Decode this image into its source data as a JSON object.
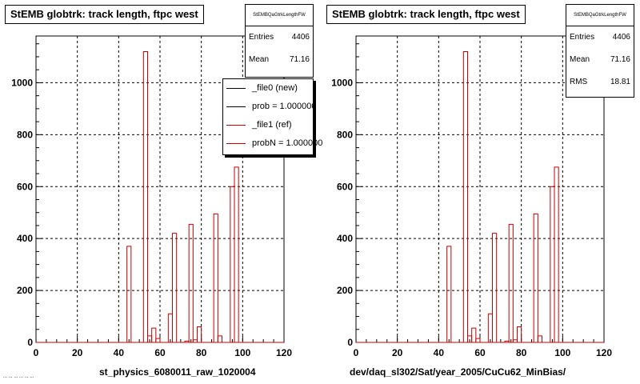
{
  "colors": {
    "ref": "#cc0000",
    "new": "#000000",
    "grid": "#000000"
  },
  "footer": "... ... ... ... ... ...",
  "pads": [
    {
      "id": "left",
      "title": "StEMB globtrk: track length, ftpc west",
      "stats": {
        "name": "StEMBQaGtrkLengthFW",
        "rows": [
          {
            "label": "Entries",
            "value": "4406"
          },
          {
            "label": "Mean",
            "value": "71.16"
          }
        ]
      },
      "legend": [
        {
          "label": "_file0 (new)",
          "color": "#000000"
        },
        {
          "label": "prob = 1.000000",
          "color": "#000000"
        },
        {
          "label": "_file1 (ref)",
          "color": "#cc0000"
        },
        {
          "label": "probN = 1.000000",
          "color": "#cc0000"
        }
      ],
      "xcaption": "st_physics_6080011_raw_1020004"
    },
    {
      "id": "right",
      "title": "StEMB globtrk: track length, ftpc west",
      "stats": {
        "name": "StEMBQaGtrkLengthFW",
        "rows": [
          {
            "label": "Entries",
            "value": "4406"
          },
          {
            "label": "Mean",
            "value": "71.16"
          },
          {
            "label": "RMS",
            "value": "18.81"
          }
        ]
      },
      "legend": [],
      "xcaption": "dev/daq_sl302/Sat/year_2005/CuCu62_MinBias/"
    }
  ],
  "chart_data": [
    {
      "type": "bar",
      "title": "StEMB globtrk: track length, ftpc west",
      "xlabel": "st_physics_6080011_raw_1020004",
      "ylabel": "",
      "xlim": [
        0,
        120
      ],
      "ylim": [
        0,
        1180
      ],
      "xticks": [
        0,
        20,
        40,
        60,
        80,
        100,
        120
      ],
      "yticks": [
        0,
        200,
        400,
        600,
        800,
        1000
      ],
      "grid": true,
      "bin_width": 2,
      "bins": [
        {
          "x": 42,
          "y": 0
        },
        {
          "x": 44,
          "y": 370
        },
        {
          "x": 46,
          "y": 0
        },
        {
          "x": 48,
          "y": 0
        },
        {
          "x": 50,
          "y": 0
        },
        {
          "x": 52,
          "y": 1120
        },
        {
          "x": 54,
          "y": 25
        },
        {
          "x": 56,
          "y": 55
        },
        {
          "x": 58,
          "y": 15
        },
        {
          "x": 60,
          "y": 0
        },
        {
          "x": 62,
          "y": 0
        },
        {
          "x": 64,
          "y": 110
        },
        {
          "x": 66,
          "y": 420
        },
        {
          "x": 68,
          "y": 0
        },
        {
          "x": 70,
          "y": 0
        },
        {
          "x": 72,
          "y": 5
        },
        {
          "x": 74,
          "y": 455
        },
        {
          "x": 76,
          "y": 10
        },
        {
          "x": 78,
          "y": 60
        },
        {
          "x": 80,
          "y": 0
        },
        {
          "x": 82,
          "y": 0
        },
        {
          "x": 84,
          "y": 0
        },
        {
          "x": 86,
          "y": 495
        },
        {
          "x": 88,
          "y": 25
        },
        {
          "x": 90,
          "y": 0
        },
        {
          "x": 92,
          "y": 0
        },
        {
          "x": 94,
          "y": 600
        },
        {
          "x": 96,
          "y": 675
        },
        {
          "x": 98,
          "y": 0
        }
      ],
      "series": [
        {
          "name": "_file1 (ref)",
          "color": "#cc0000"
        },
        {
          "name": "_file0 (new)",
          "color": "#000000"
        }
      ]
    },
    {
      "type": "bar",
      "title": "StEMB globtrk: track length, ftpc west",
      "xlabel": "dev/daq_sl302/Sat/year_2005/CuCu62_MinBias/",
      "ylabel": "",
      "xlim": [
        0,
        120
      ],
      "ylim": [
        0,
        1180
      ],
      "xticks": [
        0,
        20,
        40,
        60,
        80,
        100,
        120
      ],
      "yticks": [
        0,
        200,
        400,
        600,
        800,
        1000
      ],
      "grid": true,
      "bin_width": 2,
      "bins": [
        {
          "x": 42,
          "y": 0
        },
        {
          "x": 44,
          "y": 370
        },
        {
          "x": 46,
          "y": 0
        },
        {
          "x": 48,
          "y": 0
        },
        {
          "x": 50,
          "y": 0
        },
        {
          "x": 52,
          "y": 1120
        },
        {
          "x": 54,
          "y": 25
        },
        {
          "x": 56,
          "y": 55
        },
        {
          "x": 58,
          "y": 15
        },
        {
          "x": 60,
          "y": 0
        },
        {
          "x": 62,
          "y": 0
        },
        {
          "x": 64,
          "y": 110
        },
        {
          "x": 66,
          "y": 420
        },
        {
          "x": 68,
          "y": 0
        },
        {
          "x": 70,
          "y": 0
        },
        {
          "x": 72,
          "y": 5
        },
        {
          "x": 74,
          "y": 455
        },
        {
          "x": 76,
          "y": 10
        },
        {
          "x": 78,
          "y": 60
        },
        {
          "x": 80,
          "y": 0
        },
        {
          "x": 82,
          "y": 0
        },
        {
          "x": 84,
          "y": 0
        },
        {
          "x": 86,
          "y": 495
        },
        {
          "x": 88,
          "y": 25
        },
        {
          "x": 90,
          "y": 0
        },
        {
          "x": 92,
          "y": 0
        },
        {
          "x": 94,
          "y": 600
        },
        {
          "x": 96,
          "y": 675
        },
        {
          "x": 98,
          "y": 0
        }
      ],
      "series": [
        {
          "name": "",
          "color": "#cc0000"
        }
      ]
    }
  ]
}
